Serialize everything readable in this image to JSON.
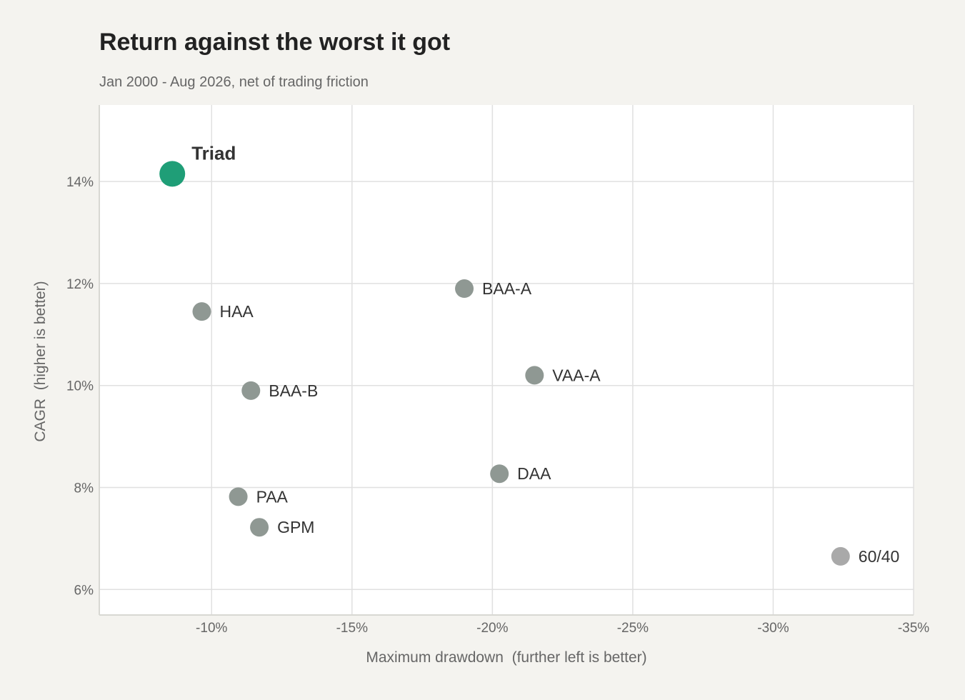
{
  "chart_data": {
    "type": "scatter",
    "title": "Return against the worst it got",
    "subtitle": "Jan 2000 - Aug 2026, net of trading friction",
    "xlabel": "Maximum drawdown  (further left is better)",
    "ylabel": "CAGR  (higher is better)",
    "xlim": [
      -6,
      -35
    ],
    "ylim": [
      5.5,
      15.5
    ],
    "x_ticks": [
      -10,
      -15,
      -20,
      -25,
      -30,
      -35
    ],
    "x_tick_labels": [
      "-10%",
      "-15%",
      "-20%",
      "-25%",
      "-30%",
      "-35%"
    ],
    "y_ticks": [
      6,
      8,
      10,
      12,
      14
    ],
    "y_tick_labels": [
      "6%",
      "8%",
      "10%",
      "12%",
      "14%"
    ],
    "grid": true,
    "points": [
      {
        "label": "Triad",
        "x": -8.6,
        "y": 14.15,
        "color": "#1f9e77",
        "highlight": true
      },
      {
        "label": "HAA",
        "x": -9.65,
        "y": 11.45,
        "color": "#8f9893"
      },
      {
        "label": "BAA-A",
        "x": -19.0,
        "y": 11.9,
        "color": "#8f9893"
      },
      {
        "label": "VAA-A",
        "x": -21.5,
        "y": 10.2,
        "color": "#8f9893"
      },
      {
        "label": "BAA-B",
        "x": -11.4,
        "y": 9.9,
        "color": "#8f9893"
      },
      {
        "label": "DAA",
        "x": -20.25,
        "y": 8.27,
        "color": "#8f9893"
      },
      {
        "label": "PAA",
        "x": -10.95,
        "y": 7.82,
        "color": "#8f9893"
      },
      {
        "label": "GPM",
        "x": -11.7,
        "y": 7.22,
        "color": "#8f9893"
      },
      {
        "label": "60/40",
        "x": -32.4,
        "y": 6.65,
        "color": "#a9a9a9",
        "label_color": "#555555"
      }
    ]
  },
  "colors": {
    "background": "#f4f3ef",
    "plot_background": "#ffffff",
    "grid": "#e0e0e0",
    "highlight": "#1f9e77",
    "highlight_label": "#1e7a5c",
    "point": "#8f9893"
  }
}
